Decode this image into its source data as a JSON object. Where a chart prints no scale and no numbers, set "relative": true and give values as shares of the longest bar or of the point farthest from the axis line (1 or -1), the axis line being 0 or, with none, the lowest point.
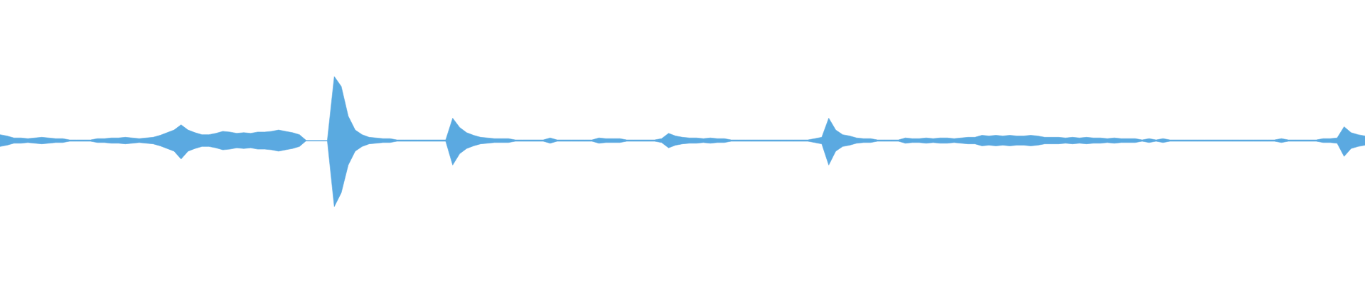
{
  "chart_data": {
    "type": "area",
    "relative": true,
    "categories": [
      null,
      null,
      null,
      null,
      null,
      null,
      null,
      null,
      null,
      null,
      null,
      null,
      null,
      null,
      null,
      null,
      null,
      null,
      null,
      null,
      null,
      null,
      null,
      null,
      null,
      null,
      null,
      null,
      null,
      null,
      null,
      null,
      null,
      null,
      null,
      null,
      null,
      null,
      null,
      null,
      null,
      null,
      null,
      null,
      null,
      null,
      null,
      null,
      null,
      null,
      null,
      null,
      null,
      null,
      null,
      null,
      null,
      null,
      null,
      null,
      null,
      null,
      null,
      null,
      null,
      null,
      null,
      null,
      null,
      null,
      null,
      null,
      null,
      null,
      null,
      null,
      null,
      null,
      null,
      null,
      null,
      null,
      null,
      null,
      null,
      null,
      null,
      null,
      null,
      null,
      null,
      null,
      null,
      null,
      null,
      null,
      null,
      null,
      null,
      null,
      null,
      null,
      null,
      null,
      null,
      null,
      null,
      null,
      null,
      null,
      null,
      null,
      null,
      null,
      null,
      null,
      null,
      null,
      null,
      null,
      null,
      null,
      null,
      null,
      null,
      null,
      null,
      null,
      null,
      null,
      null,
      null,
      null,
      null,
      null,
      null,
      null,
      null,
      null,
      null,
      null,
      null,
      null,
      null,
      null,
      null,
      null,
      null,
      null,
      null,
      null,
      null,
      null,
      null,
      null,
      null,
      null,
      null,
      null,
      null,
      null,
      null,
      null,
      null,
      null,
      null,
      null,
      null,
      null,
      null,
      null,
      null,
      null,
      null,
      null,
      null,
      null,
      null,
      null,
      null,
      null,
      null,
      null,
      null,
      null,
      null,
      null,
      null,
      null,
      null,
      null,
      null,
      null,
      null,
      null,
      null,
      null
    ],
    "series": [
      {
        "color": "#5aaae0",
        "values": [
          0.09,
          0.07,
          0.04,
          0.04,
          0.03,
          0.04,
          0.05,
          0.04,
          0.03,
          0.03,
          0.01,
          0.01,
          0.01,
          0.01,
          0.03,
          0.03,
          0.04,
          0.04,
          0.05,
          0.04,
          0.03,
          0.04,
          0.05,
          0.08,
          0.12,
          0.16,
          0.24,
          0.16,
          0.12,
          0.09,
          0.09,
          0.11,
          0.14,
          0.13,
          0.11,
          0.12,
          0.11,
          0.13,
          0.13,
          0.14,
          0.16,
          0.14,
          0.12,
          0.09,
          0,
          0,
          0,
          0,
          0.97,
          0.82,
          0.37,
          0.16,
          0.09,
          0.05,
          0.04,
          0.03,
          0.03,
          0.01,
          0.01,
          0.01,
          0.01,
          0.01,
          0.01,
          0.01,
          0.01,
          0.34,
          0.2,
          0.12,
          0.08,
          0.05,
          0.04,
          0.03,
          0.03,
          0.03,
          0.01,
          0.01,
          0.01,
          0.01,
          0.01,
          0.04,
          0.01,
          0.01,
          0.01,
          0.01,
          0.01,
          0.01,
          0.04,
          0.03,
          0.03,
          0.03,
          0.01,
          0.01,
          0.01,
          0.01,
          0.01,
          0.03,
          0.11,
          0.07,
          0.05,
          0.04,
          0.04,
          0.03,
          0.04,
          0.03,
          0.03,
          0.01,
          0.01,
          0.01,
          0.01,
          0.01,
          0.01,
          0.01,
          0.01,
          0.01,
          0.01,
          0.01,
          0.01,
          0.03,
          0.05,
          0.34,
          0.16,
          0.09,
          0.07,
          0.04,
          0.03,
          0.03,
          0.01,
          0.01,
          0.01,
          0.01,
          0.04,
          0.03,
          0.03,
          0.04,
          0.03,
          0.04,
          0.04,
          0.03,
          0.04,
          0.05,
          0.05,
          0.08,
          0.07,
          0.08,
          0.07,
          0.08,
          0.07,
          0.07,
          0.08,
          0.07,
          0.05,
          0.05,
          0.05,
          0.04,
          0.05,
          0.04,
          0.05,
          0.04,
          0.04,
          0.03,
          0.04,
          0.03,
          0.03,
          0.03,
          0.01,
          0.03,
          0.01,
          0.03,
          0.01,
          0.01,
          0.01,
          0.01,
          0.01,
          0.01,
          0.01,
          0.01,
          0.01,
          0.01,
          0.01,
          0.01,
          0.01,
          0.01,
          0.01,
          0.01,
          0.03,
          0.01,
          0.01,
          0.01,
          0.01,
          0.01,
          0.03,
          0.03,
          0.04,
          0.21,
          0.12,
          0.09,
          0.07
        ]
      },
      {
        "color": "#5ba9e1",
        "values": [
          -0.09,
          -0.07,
          -0.04,
          -0.04,
          -0.03,
          -0.04,
          -0.05,
          -0.04,
          -0.03,
          -0.03,
          -0.01,
          -0.01,
          -0.01,
          -0.01,
          -0.03,
          -0.03,
          -0.04,
          -0.04,
          -0.05,
          -0.04,
          -0.03,
          -0.04,
          -0.05,
          -0.08,
          -0.12,
          -0.16,
          -0.28,
          -0.16,
          -0.12,
          -0.09,
          -0.09,
          -0.11,
          -0.14,
          -0.13,
          -0.11,
          -0.12,
          -0.11,
          -0.13,
          -0.13,
          -0.14,
          -0.16,
          -0.14,
          -0.12,
          -0.09,
          0,
          0,
          0,
          0,
          -1,
          -0.79,
          -0.37,
          -0.16,
          -0.09,
          -0.05,
          -0.04,
          -0.03,
          -0.03,
          -0.01,
          -0.01,
          -0.01,
          -0.01,
          -0.01,
          -0.01,
          -0.01,
          -0.01,
          -0.37,
          -0.2,
          -0.12,
          -0.08,
          -0.05,
          -0.04,
          -0.03,
          -0.03,
          -0.03,
          -0.01,
          -0.01,
          -0.01,
          -0.01,
          -0.01,
          -0.04,
          -0.01,
          -0.01,
          -0.01,
          -0.01,
          -0.01,
          -0.01,
          -0.04,
          -0.03,
          -0.03,
          -0.03,
          -0.01,
          -0.01,
          -0.01,
          -0.01,
          -0.01,
          -0.03,
          -0.11,
          -0.07,
          -0.05,
          -0.04,
          -0.04,
          -0.03,
          -0.04,
          -0.03,
          -0.03,
          -0.01,
          -0.01,
          -0.01,
          -0.01,
          -0.01,
          -0.01,
          -0.01,
          -0.01,
          -0.01,
          -0.01,
          -0.01,
          -0.01,
          -0.03,
          -0.05,
          -0.37,
          -0.16,
          -0.09,
          -0.07,
          -0.04,
          -0.03,
          -0.03,
          -0.01,
          -0.01,
          -0.01,
          -0.01,
          -0.04,
          -0.03,
          -0.03,
          -0.04,
          -0.03,
          -0.04,
          -0.04,
          -0.03,
          -0.04,
          -0.05,
          -0.05,
          -0.08,
          -0.07,
          -0.08,
          -0.07,
          -0.08,
          -0.07,
          -0.07,
          -0.08,
          -0.07,
          -0.05,
          -0.05,
          -0.05,
          -0.04,
          -0.05,
          -0.04,
          -0.05,
          -0.04,
          -0.04,
          -0.03,
          -0.04,
          -0.03,
          -0.03,
          -0.03,
          -0.01,
          -0.03,
          -0.01,
          -0.03,
          -0.01,
          -0.01,
          -0.01,
          -0.01,
          -0.01,
          -0.01,
          -0.01,
          -0.01,
          -0.01,
          -0.01,
          -0.01,
          -0.01,
          -0.01,
          -0.01,
          -0.01,
          -0.01,
          -0.03,
          -0.01,
          -0.01,
          -0.01,
          -0.01,
          -0.01,
          -0.03,
          -0.03,
          -0.04,
          -0.24,
          -0.12,
          -0.09,
          -0.07
        ]
      }
    ]
  }
}
